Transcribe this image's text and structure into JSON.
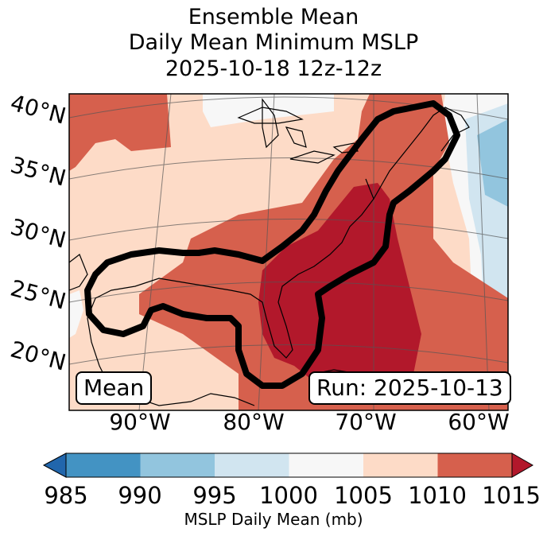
{
  "title": {
    "line1": "Ensemble Mean",
    "line2": "Daily Mean Minimum MSLP",
    "line3": "2025-10-18 12z-12z"
  },
  "map": {
    "lat_labels": [
      "40°N",
      "35°N",
      "30°N",
      "25°N",
      "20°N"
    ],
    "lon_labels": [
      "90°W",
      "80°W",
      "70°W",
      "60°W"
    ],
    "mean_box": "Mean",
    "run_box": "Run: 2025-10-13"
  },
  "colorbar": {
    "label": "MSLP Daily Mean (mb)",
    "ticks": [
      "985",
      "990",
      "995",
      "1000",
      "1005",
      "1010",
      "1015"
    ],
    "colors": {
      "below_985": "#2166ac",
      "985_990": "#4393c3",
      "990_995": "#92c5de",
      "995_1000": "#d1e5f0",
      "1000_1005": "#f7f7f7",
      "1005_1010": "#fddbc7",
      "1010_1015": "#d6604d",
      "above_1015": "#b2182b"
    }
  }
}
